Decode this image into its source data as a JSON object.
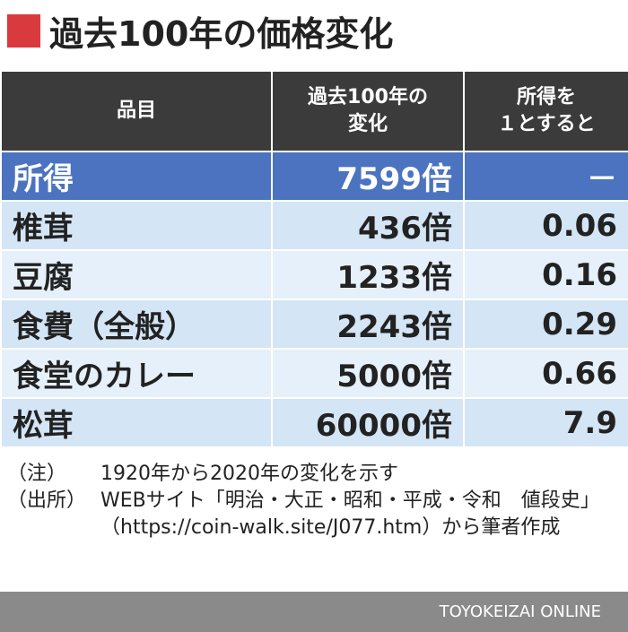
{
  "header": {
    "title": "過去100年の価格変化"
  },
  "table": {
    "columns": [
      [
        "品目"
      ],
      [
        "過去100年の",
        "変化"
      ],
      [
        "所得を",
        "１とすると"
      ]
    ],
    "rows": [
      [
        "所得",
        "7599倍",
        "－"
      ],
      [
        "椎茸",
        "436倍",
        "0.06"
      ],
      [
        "豆腐",
        "1233倍",
        "0.16"
      ],
      [
        "食費（全般）",
        "2243倍",
        "0.29"
      ],
      [
        "食堂のカレー",
        "5000倍",
        "0.66"
      ],
      [
        "松茸",
        "60000倍",
        "7.9"
      ]
    ]
  },
  "notes": [
    {
      "label": "（注）",
      "text": "1920年から2020年の変化を示す"
    },
    {
      "label": "（出所）",
      "text": "WEBサイト「明治・大正・昭和・平成・令和　値段史」（https://coin-walk.site/J077.htm）から筆者作成"
    }
  ],
  "footer": {
    "brand": "TOYOKEIZAI ONLINE"
  }
}
